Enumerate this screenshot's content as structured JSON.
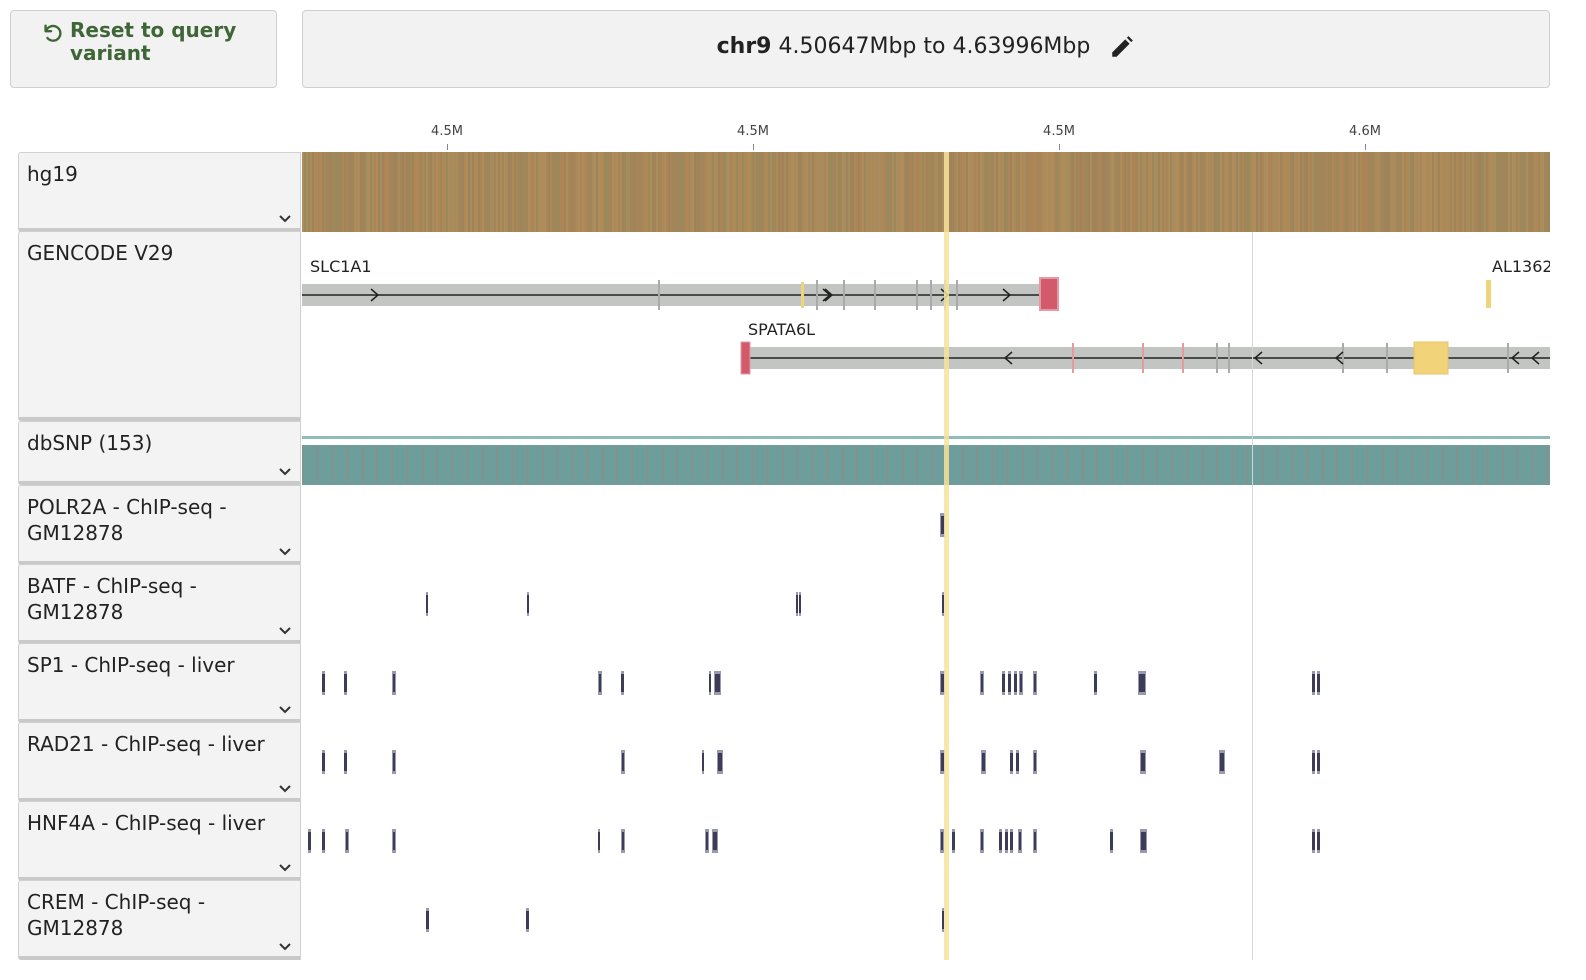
{
  "reset_button": {
    "label": "Reset to query variant",
    "icon": "undo-icon",
    "color": "#3f6637"
  },
  "location": {
    "chrom": "chr9",
    "range": "4.50647Mbp to 4.63996Mbp",
    "edit_icon": "pencil-icon"
  },
  "ruler": {
    "ticks": [
      {
        "label": "4.5M"
      },
      {
        "label": "4.5M"
      },
      {
        "label": "4.5M"
      },
      {
        "label": "4.6M"
      }
    ]
  },
  "tracks": [
    {
      "label": "hg19"
    },
    {
      "label": "GENCODE V29"
    },
    {
      "label": "dbSNP (153)"
    },
    {
      "label": "POLR2A - ChIP-seq - GM12878"
    },
    {
      "label": "BATF - ChIP-seq - GM12878"
    },
    {
      "label": "SP1 - ChIP-seq - liver"
    },
    {
      "label": "RAD21 - ChIP-seq - liver"
    },
    {
      "label": "HNF4A - ChIP-seq - liver"
    },
    {
      "label": "CREM - ChIP-seq - GM12878"
    }
  ],
  "genes": [
    {
      "name": "SLC1A1"
    },
    {
      "name": "SPATA6L"
    },
    {
      "name": "AL1362"
    }
  ],
  "colors": {
    "sequence": "#a8875a",
    "dbsnp": "#6e9e9b",
    "peak": "#3c3c58",
    "highlight": "#f6e39a",
    "utr": "#d35a6a",
    "gene_body": "#c2c5c2"
  }
}
